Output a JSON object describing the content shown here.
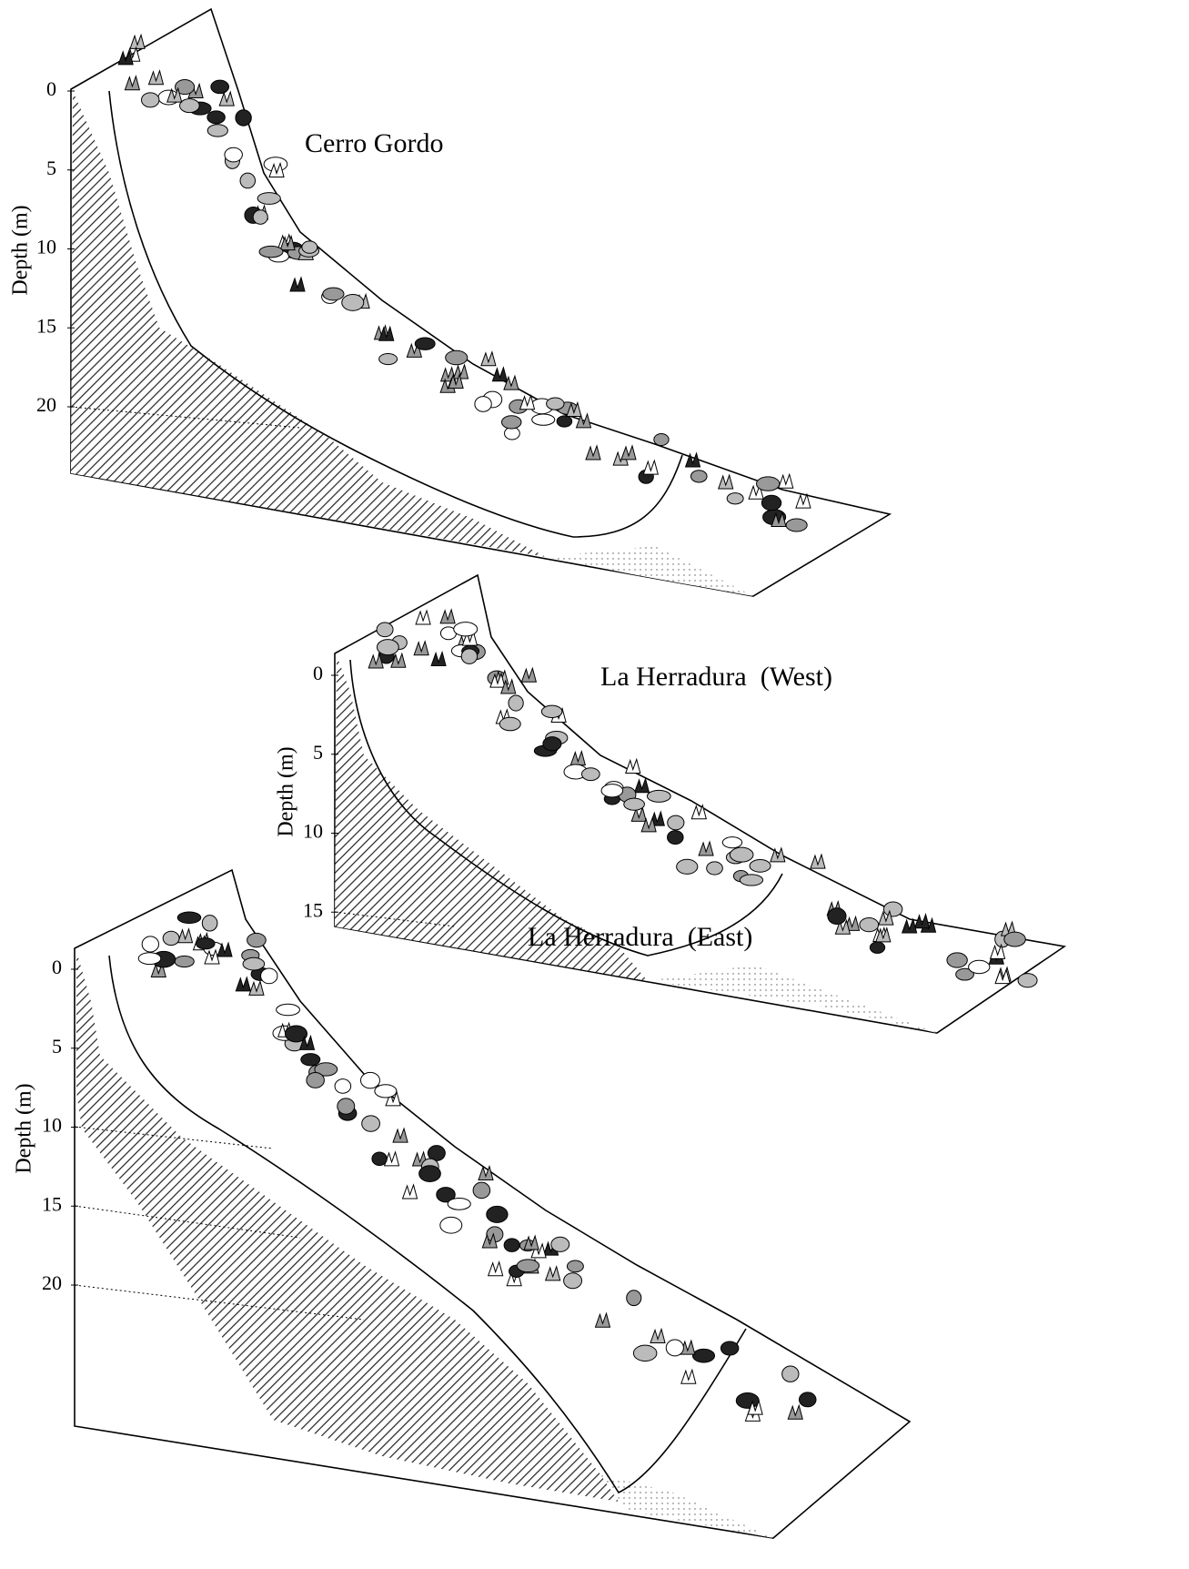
{
  "panels": [
    {
      "title": "Cerro Gordo",
      "y_label": "Depth (m)",
      "ticks": [
        0,
        5,
        10,
        15,
        20
      ]
    },
    {
      "title": "La Herradura  (West)",
      "y_label": "Depth (m)",
      "ticks": [
        0,
        5,
        10,
        15
      ]
    },
    {
      "title": "La Herradura  (East)",
      "y_label": "Depth (m)",
      "ticks": [
        0,
        5,
        10,
        15,
        20
      ]
    }
  ]
}
